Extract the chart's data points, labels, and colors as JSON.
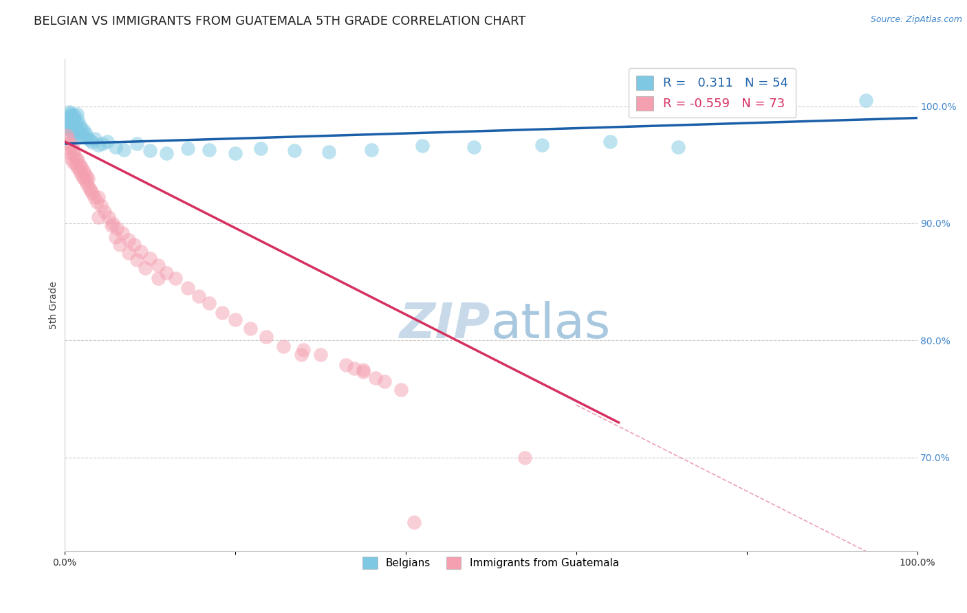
{
  "title": "BELGIAN VS IMMIGRANTS FROM GUATEMALA 5TH GRADE CORRELATION CHART",
  "source_text": "Source: ZipAtlas.com",
  "ylabel": "5th Grade",
  "x_ticks": [
    0.0,
    0.2,
    0.4,
    0.6,
    0.8,
    1.0
  ],
  "x_tick_labels": [
    "0.0%",
    "",
    "",
    "",
    "",
    "100.0%"
  ],
  "y_ticks": [
    0.7,
    0.8,
    0.9,
    1.0
  ],
  "y_tick_labels": [
    "70.0%",
    "80.0%",
    "90.0%",
    "100.0%"
  ],
  "xlim": [
    0.0,
    1.0
  ],
  "ylim": [
    0.62,
    1.04
  ],
  "blue_R": 0.311,
  "blue_N": 54,
  "pink_R": -0.559,
  "pink_N": 73,
  "blue_color": "#7ec8e3",
  "pink_color": "#f4a0b0",
  "blue_line_color": "#1a5fa8",
  "pink_line_color": "#d63060",
  "grid_color": "#cccccc",
  "title_color": "#222222",
  "axis_label_color": "#444444",
  "right_axis_color": "#4488cc",
  "watermark_color": "#c8daea",
  "blue_points_x": [
    0.003,
    0.004,
    0.005,
    0.006,
    0.006,
    0.007,
    0.007,
    0.008,
    0.008,
    0.009,
    0.009,
    0.01,
    0.01,
    0.011,
    0.011,
    0.012,
    0.012,
    0.013,
    0.014,
    0.015,
    0.015,
    0.016,
    0.017,
    0.018,
    0.019,
    0.02,
    0.021,
    0.023,
    0.025,
    0.027,
    0.03,
    0.033,
    0.036,
    0.04,
    0.045,
    0.05,
    0.06,
    0.07,
    0.085,
    0.1,
    0.12,
    0.145,
    0.17,
    0.2,
    0.23,
    0.27,
    0.31,
    0.36,
    0.42,
    0.48,
    0.56,
    0.64,
    0.72,
    0.94
  ],
  "blue_points_y": [
    0.982,
    0.99,
    0.988,
    0.995,
    0.985,
    0.992,
    0.98,
    0.994,
    0.984,
    0.992,
    0.978,
    0.99,
    0.982,
    0.988,
    0.975,
    0.992,
    0.983,
    0.986,
    0.979,
    0.993,
    0.977,
    0.988,
    0.978,
    0.984,
    0.974,
    0.981,
    0.975,
    0.979,
    0.976,
    0.973,
    0.971,
    0.969,
    0.972,
    0.967,
    0.968,
    0.97,
    0.965,
    0.963,
    0.968,
    0.962,
    0.96,
    0.964,
    0.963,
    0.96,
    0.964,
    0.962,
    0.961,
    0.963,
    0.966,
    0.965,
    0.967,
    0.97,
    0.965,
    1.005
  ],
  "pink_points_x": [
    0.003,
    0.004,
    0.005,
    0.006,
    0.007,
    0.008,
    0.009,
    0.01,
    0.011,
    0.012,
    0.013,
    0.014,
    0.015,
    0.016,
    0.017,
    0.018,
    0.019,
    0.02,
    0.021,
    0.022,
    0.023,
    0.024,
    0.025,
    0.026,
    0.027,
    0.028,
    0.029,
    0.031,
    0.033,
    0.035,
    0.038,
    0.04,
    0.043,
    0.047,
    0.052,
    0.057,
    0.062,
    0.068,
    0.075,
    0.082,
    0.09,
    0.1,
    0.11,
    0.12,
    0.13,
    0.145,
    0.158,
    0.17,
    0.185,
    0.2,
    0.218,
    0.237,
    0.257,
    0.278,
    0.04,
    0.06,
    0.055,
    0.065,
    0.075,
    0.085,
    0.095,
    0.11,
    0.28,
    0.3,
    0.33,
    0.34,
    0.35,
    0.365,
    0.375,
    0.395,
    0.54,
    0.35,
    0.41
  ],
  "pink_points_y": [
    0.975,
    0.972,
    0.968,
    0.964,
    0.96,
    0.956,
    0.966,
    0.952,
    0.962,
    0.958,
    0.951,
    0.955,
    0.948,
    0.954,
    0.946,
    0.95,
    0.943,
    0.948,
    0.94,
    0.945,
    0.938,
    0.943,
    0.936,
    0.94,
    0.933,
    0.938,
    0.93,
    0.928,
    0.926,
    0.922,
    0.918,
    0.922,
    0.915,
    0.91,
    0.905,
    0.9,
    0.896,
    0.892,
    0.886,
    0.882,
    0.876,
    0.87,
    0.864,
    0.858,
    0.853,
    0.845,
    0.838,
    0.832,
    0.824,
    0.818,
    0.81,
    0.803,
    0.795,
    0.788,
    0.905,
    0.888,
    0.898,
    0.882,
    0.875,
    0.869,
    0.862,
    0.853,
    0.792,
    0.788,
    0.779,
    0.776,
    0.773,
    0.768,
    0.765,
    0.758,
    0.7,
    0.775,
    0.645
  ],
  "blue_line_x": [
    0.0,
    1.0
  ],
  "blue_line_y": [
    0.968,
    0.99
  ],
  "pink_line_x": [
    0.0,
    0.65
  ],
  "pink_line_y": [
    0.97,
    0.73
  ],
  "dashed_line_x": [
    0.6,
    1.0
  ],
  "dashed_line_y": [
    0.745,
    0.598
  ],
  "background_color": "#ffffff",
  "title_fontsize": 13,
  "axis_label_fontsize": 10,
  "tick_fontsize": 10,
  "legend_fontsize": 13,
  "watermark_fontsize": 52,
  "legend_label_blue": "Belgians",
  "legend_label_pink": "Immigrants from Guatemala"
}
